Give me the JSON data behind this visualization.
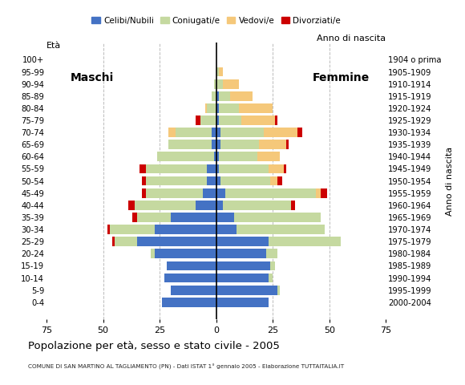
{
  "age_groups": [
    "0-4",
    "5-9",
    "10-14",
    "15-19",
    "20-24",
    "25-29",
    "30-34",
    "35-39",
    "40-44",
    "45-49",
    "50-54",
    "55-59",
    "60-64",
    "65-69",
    "70-74",
    "75-79",
    "80-84",
    "85-89",
    "90-94",
    "95-99",
    "100+"
  ],
  "birth_years": [
    "2000-2004",
    "1995-1999",
    "1990-1994",
    "1985-1989",
    "1980-1984",
    "1975-1979",
    "1970-1974",
    "1965-1969",
    "1960-1964",
    "1955-1959",
    "1950-1954",
    "1945-1949",
    "1940-1944",
    "1935-1939",
    "1930-1934",
    "1925-1929",
    "1920-1924",
    "1915-1919",
    "1910-1914",
    "1905-1909",
    "1904 o prima"
  ],
  "males": {
    "celibe": [
      24,
      20,
      23,
      22,
      27,
      35,
      27,
      20,
      9,
      6,
      4,
      4,
      1,
      2,
      2,
      0,
      0,
      0,
      0,
      0,
      0
    ],
    "coniugato": [
      0,
      0,
      0,
      0,
      2,
      10,
      20,
      15,
      27,
      25,
      27,
      27,
      25,
      19,
      16,
      7,
      4,
      2,
      1,
      0,
      0
    ],
    "vedovo": [
      0,
      0,
      0,
      0,
      0,
      0,
      0,
      0,
      0,
      0,
      0,
      0,
      0,
      0,
      3,
      0,
      1,
      0,
      0,
      0,
      0
    ],
    "divorziato": [
      0,
      0,
      0,
      0,
      0,
      1,
      1,
      2,
      3,
      2,
      2,
      3,
      0,
      0,
      0,
      2,
      0,
      0,
      0,
      0,
      0
    ]
  },
  "females": {
    "nubile": [
      23,
      27,
      23,
      24,
      22,
      23,
      9,
      8,
      3,
      4,
      2,
      1,
      1,
      2,
      2,
      1,
      1,
      1,
      0,
      0,
      0
    ],
    "coniugata": [
      0,
      1,
      2,
      2,
      5,
      32,
      39,
      38,
      30,
      40,
      22,
      22,
      17,
      17,
      19,
      10,
      9,
      5,
      3,
      1,
      0
    ],
    "vedova": [
      0,
      0,
      0,
      0,
      0,
      0,
      0,
      0,
      0,
      2,
      3,
      7,
      10,
      12,
      15,
      15,
      15,
      10,
      7,
      2,
      0
    ],
    "divorziata": [
      0,
      0,
      0,
      0,
      0,
      0,
      0,
      0,
      2,
      3,
      2,
      1,
      0,
      1,
      2,
      1,
      0,
      0,
      0,
      0,
      0
    ]
  },
  "colors": {
    "celibe": "#4472c4",
    "coniugato": "#c5d9a0",
    "vedovo": "#f5c87a",
    "divorziato": "#cc0000"
  },
  "legend_labels": [
    "Celibi/Nubili",
    "Coniugati/e",
    "Vedovi/e",
    "Divorziati/e"
  ],
  "title": "Popolazione per età, sesso e stato civile - 2005",
  "subtitle": "COMUNE DI SAN MARTINO AL TAGLIAMENTO (PN) - Dati ISTAT 1° gennaio 2005 - Elaborazione TUTTAITALIA.IT",
  "label_eta": "Età",
  "label_anno": "Anno di nascita",
  "label_maschi": "Maschi",
  "label_femmine": "Femmine",
  "xlim": 75,
  "background_color": "#ffffff",
  "grid_color": "#aaaaaa"
}
